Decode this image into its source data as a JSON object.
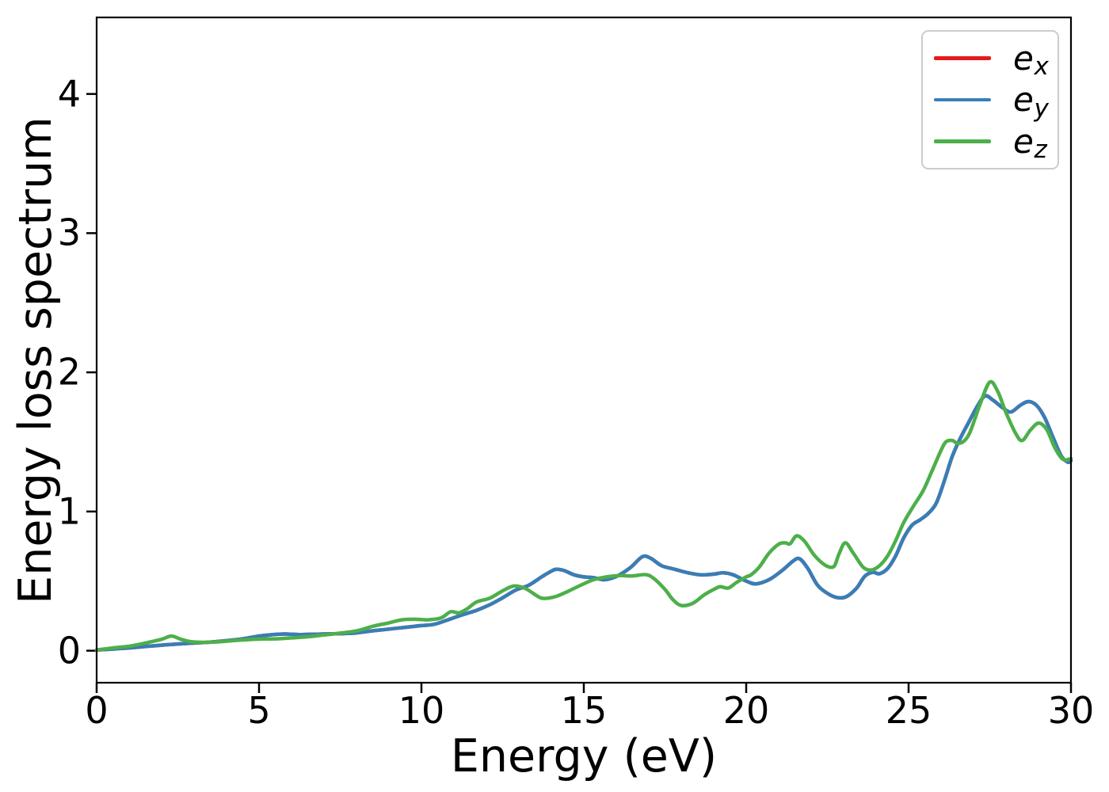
{
  "figure": {
    "xlabel": "Energy (eV)",
    "ylabel": "Energy loss spectrum",
    "x_tick_labels": [
      "0",
      "5",
      "10",
      "15",
      "20",
      "25",
      "30"
    ],
    "y_tick_labels": [
      "0",
      "1",
      "2",
      "3",
      "4"
    ]
  },
  "legend": {
    "entries": [
      {
        "base": "e",
        "sub": "x",
        "color": "#e41a1c"
      },
      {
        "base": "e",
        "sub": "y",
        "color": "#377eb8"
      },
      {
        "base": "e",
        "sub": "z",
        "color": "#4daf4a"
      }
    ]
  },
  "chart_data": {
    "type": "line",
    "title": "",
    "xlabel": "Energy (eV)",
    "ylabel": "Energy loss spectrum",
    "xlim": [
      0,
      30
    ],
    "ylim": [
      -0.23,
      4.55
    ],
    "x_ticks": [
      0,
      5,
      10,
      15,
      20,
      25,
      30
    ],
    "y_ticks": [
      0,
      1,
      2,
      3,
      4
    ],
    "grid": false,
    "legend_position": "upper right",
    "series": [
      {
        "name": "e_x",
        "color": "#e41a1c",
        "points": [
          [
            0,
            0.005
          ],
          [
            0.5,
            0.012
          ],
          [
            1,
            0.02
          ],
          [
            1.5,
            0.03
          ],
          [
            2,
            0.04
          ],
          [
            2.5,
            0.048
          ],
          [
            3,
            0.055
          ],
          [
            3.5,
            0.062
          ],
          [
            4,
            0.072
          ],
          [
            4.5,
            0.085
          ],
          [
            5,
            0.105
          ],
          [
            5.4,
            0.115
          ],
          [
            5.8,
            0.12
          ],
          [
            6.3,
            0.116
          ],
          [
            7,
            0.12
          ],
          [
            7.6,
            0.123
          ],
          [
            8,
            0.128
          ],
          [
            8.5,
            0.143
          ],
          [
            9,
            0.155
          ],
          [
            9.5,
            0.168
          ],
          [
            10,
            0.18
          ],
          [
            10.4,
            0.19
          ],
          [
            10.8,
            0.22
          ],
          [
            11.1,
            0.245
          ],
          [
            11.4,
            0.268
          ],
          [
            11.7,
            0.29
          ],
          [
            12.1,
            0.33
          ],
          [
            12.5,
            0.38
          ],
          [
            12.9,
            0.435
          ],
          [
            13.3,
            0.47
          ],
          [
            13.7,
            0.53
          ],
          [
            13.95,
            0.565
          ],
          [
            14.15,
            0.585
          ],
          [
            14.4,
            0.575
          ],
          [
            14.7,
            0.545
          ],
          [
            15,
            0.53
          ],
          [
            15.3,
            0.525
          ],
          [
            15.6,
            0.51
          ],
          [
            15.85,
            0.52
          ],
          [
            16.1,
            0.545
          ],
          [
            16.45,
            0.6
          ],
          [
            16.8,
            0.675
          ],
          [
            17.05,
            0.665
          ],
          [
            17.4,
            0.61
          ],
          [
            17.8,
            0.585
          ],
          [
            18.2,
            0.56
          ],
          [
            18.6,
            0.545
          ],
          [
            19,
            0.55
          ],
          [
            19.3,
            0.56
          ],
          [
            19.6,
            0.545
          ],
          [
            20,
            0.5
          ],
          [
            20.3,
            0.48
          ],
          [
            20.7,
            0.51
          ],
          [
            21.1,
            0.575
          ],
          [
            21.45,
            0.645
          ],
          [
            21.65,
            0.66
          ],
          [
            21.9,
            0.59
          ],
          [
            22.2,
            0.47
          ],
          [
            22.55,
            0.405
          ],
          [
            22.85,
            0.38
          ],
          [
            23.1,
            0.39
          ],
          [
            23.4,
            0.45
          ],
          [
            23.65,
            0.535
          ],
          [
            23.9,
            0.563
          ],
          [
            24.1,
            0.553
          ],
          [
            24.35,
            0.59
          ],
          [
            24.6,
            0.68
          ],
          [
            24.85,
            0.81
          ],
          [
            25.1,
            0.9
          ],
          [
            25.35,
            0.94
          ],
          [
            25.6,
            0.985
          ],
          [
            25.85,
            1.06
          ],
          [
            26.1,
            1.22
          ],
          [
            26.35,
            1.4
          ],
          [
            26.6,
            1.53
          ],
          [
            26.85,
            1.64
          ],
          [
            27.1,
            1.75
          ],
          [
            27.35,
            1.83
          ],
          [
            27.6,
            1.8
          ],
          [
            27.9,
            1.745
          ],
          [
            28.15,
            1.715
          ],
          [
            28.45,
            1.765
          ],
          [
            28.7,
            1.79
          ],
          [
            28.95,
            1.76
          ],
          [
            29.2,
            1.67
          ],
          [
            29.45,
            1.53
          ],
          [
            29.7,
            1.4
          ],
          [
            29.9,
            1.355
          ],
          [
            30,
            1.365
          ]
        ]
      },
      {
        "name": "e_y",
        "color": "#377eb8",
        "points": [
          [
            0,
            0.005
          ],
          [
            0.5,
            0.012
          ],
          [
            1,
            0.02
          ],
          [
            1.5,
            0.03
          ],
          [
            2,
            0.04
          ],
          [
            2.5,
            0.048
          ],
          [
            3,
            0.055
          ],
          [
            3.5,
            0.062
          ],
          [
            4,
            0.072
          ],
          [
            4.5,
            0.085
          ],
          [
            5,
            0.105
          ],
          [
            5.4,
            0.115
          ],
          [
            5.8,
            0.12
          ],
          [
            6.3,
            0.116
          ],
          [
            7,
            0.12
          ],
          [
            7.6,
            0.123
          ],
          [
            8,
            0.128
          ],
          [
            8.5,
            0.143
          ],
          [
            9,
            0.155
          ],
          [
            9.5,
            0.168
          ],
          [
            10,
            0.18
          ],
          [
            10.4,
            0.19
          ],
          [
            10.8,
            0.22
          ],
          [
            11.1,
            0.245
          ],
          [
            11.4,
            0.268
          ],
          [
            11.7,
            0.29
          ],
          [
            12.1,
            0.33
          ],
          [
            12.5,
            0.38
          ],
          [
            12.9,
            0.435
          ],
          [
            13.3,
            0.47
          ],
          [
            13.7,
            0.53
          ],
          [
            13.95,
            0.565
          ],
          [
            14.15,
            0.585
          ],
          [
            14.4,
            0.575
          ],
          [
            14.7,
            0.545
          ],
          [
            15,
            0.53
          ],
          [
            15.3,
            0.525
          ],
          [
            15.6,
            0.51
          ],
          [
            15.85,
            0.52
          ],
          [
            16.1,
            0.545
          ],
          [
            16.45,
            0.6
          ],
          [
            16.8,
            0.675
          ],
          [
            17.05,
            0.665
          ],
          [
            17.4,
            0.61
          ],
          [
            17.8,
            0.585
          ],
          [
            18.2,
            0.56
          ],
          [
            18.6,
            0.545
          ],
          [
            19,
            0.55
          ],
          [
            19.3,
            0.56
          ],
          [
            19.6,
            0.545
          ],
          [
            20,
            0.5
          ],
          [
            20.3,
            0.48
          ],
          [
            20.7,
            0.51
          ],
          [
            21.1,
            0.575
          ],
          [
            21.45,
            0.645
          ],
          [
            21.65,
            0.66
          ],
          [
            21.9,
            0.59
          ],
          [
            22.2,
            0.47
          ],
          [
            22.55,
            0.405
          ],
          [
            22.85,
            0.38
          ],
          [
            23.1,
            0.39
          ],
          [
            23.4,
            0.45
          ],
          [
            23.65,
            0.535
          ],
          [
            23.9,
            0.563
          ],
          [
            24.1,
            0.553
          ],
          [
            24.35,
            0.59
          ],
          [
            24.6,
            0.68
          ],
          [
            24.85,
            0.81
          ],
          [
            25.1,
            0.9
          ],
          [
            25.35,
            0.94
          ],
          [
            25.6,
            0.985
          ],
          [
            25.85,
            1.06
          ],
          [
            26.1,
            1.22
          ],
          [
            26.35,
            1.4
          ],
          [
            26.6,
            1.53
          ],
          [
            26.85,
            1.64
          ],
          [
            27.1,
            1.75
          ],
          [
            27.35,
            1.83
          ],
          [
            27.6,
            1.8
          ],
          [
            27.9,
            1.745
          ],
          [
            28.15,
            1.715
          ],
          [
            28.45,
            1.765
          ],
          [
            28.7,
            1.79
          ],
          [
            28.95,
            1.76
          ],
          [
            29.2,
            1.67
          ],
          [
            29.45,
            1.53
          ],
          [
            29.7,
            1.4
          ],
          [
            29.9,
            1.355
          ],
          [
            30,
            1.365
          ]
        ]
      },
      {
        "name": "e_z",
        "color": "#4daf4a",
        "points": [
          [
            0,
            0.005
          ],
          [
            0.5,
            0.02
          ],
          [
            1,
            0.032
          ],
          [
            1.5,
            0.055
          ],
          [
            2,
            0.082
          ],
          [
            2.3,
            0.105
          ],
          [
            2.6,
            0.082
          ],
          [
            2.9,
            0.065
          ],
          [
            3.3,
            0.06
          ],
          [
            3.7,
            0.063
          ],
          [
            4.1,
            0.07
          ],
          [
            4.4,
            0.076
          ],
          [
            4.8,
            0.081
          ],
          [
            5.2,
            0.084
          ],
          [
            5.6,
            0.086
          ],
          [
            6,
            0.092
          ],
          [
            6.5,
            0.1
          ],
          [
            7,
            0.113
          ],
          [
            7.5,
            0.126
          ],
          [
            8,
            0.142
          ],
          [
            8.5,
            0.175
          ],
          [
            9,
            0.2
          ],
          [
            9.4,
            0.222
          ],
          [
            9.8,
            0.226
          ],
          [
            10.2,
            0.222
          ],
          [
            10.6,
            0.235
          ],
          [
            10.9,
            0.28
          ],
          [
            11.15,
            0.272
          ],
          [
            11.4,
            0.3
          ],
          [
            11.7,
            0.35
          ],
          [
            12.1,
            0.377
          ],
          [
            12.5,
            0.43
          ],
          [
            12.85,
            0.465
          ],
          [
            13.2,
            0.447
          ],
          [
            13.65,
            0.382
          ],
          [
            13.9,
            0.378
          ],
          [
            14.15,
            0.39
          ],
          [
            14.5,
            0.425
          ],
          [
            14.9,
            0.47
          ],
          [
            15.3,
            0.51
          ],
          [
            15.7,
            0.53
          ],
          [
            16.1,
            0.54
          ],
          [
            16.5,
            0.537
          ],
          [
            16.9,
            0.547
          ],
          [
            17.15,
            0.52
          ],
          [
            17.5,
            0.44
          ],
          [
            17.75,
            0.365
          ],
          [
            18,
            0.325
          ],
          [
            18.35,
            0.34
          ],
          [
            18.7,
            0.4
          ],
          [
            19,
            0.44
          ],
          [
            19.2,
            0.46
          ],
          [
            19.45,
            0.45
          ],
          [
            19.7,
            0.49
          ],
          [
            20,
            0.53
          ],
          [
            20.15,
            0.545
          ],
          [
            20.4,
            0.6
          ],
          [
            20.7,
            0.7
          ],
          [
            21,
            0.765
          ],
          [
            21.2,
            0.775
          ],
          [
            21.35,
            0.768
          ],
          [
            21.55,
            0.825
          ],
          [
            21.8,
            0.785
          ],
          [
            22.1,
            0.685
          ],
          [
            22.45,
            0.612
          ],
          [
            22.7,
            0.605
          ],
          [
            22.85,
            0.69
          ],
          [
            23.05,
            0.775
          ],
          [
            23.3,
            0.7
          ],
          [
            23.6,
            0.6
          ],
          [
            23.85,
            0.58
          ],
          [
            24.1,
            0.61
          ],
          [
            24.35,
            0.68
          ],
          [
            24.6,
            0.79
          ],
          [
            24.85,
            0.92
          ],
          [
            25.1,
            1.02
          ],
          [
            25.45,
            1.15
          ],
          [
            25.7,
            1.28
          ],
          [
            26,
            1.44
          ],
          [
            26.15,
            1.5
          ],
          [
            26.35,
            1.51
          ],
          [
            26.5,
            1.49
          ],
          [
            26.7,
            1.505
          ],
          [
            26.9,
            1.575
          ],
          [
            27.2,
            1.77
          ],
          [
            27.5,
            1.93
          ],
          [
            27.75,
            1.86
          ],
          [
            28,
            1.71
          ],
          [
            28.3,
            1.56
          ],
          [
            28.5,
            1.51
          ],
          [
            28.75,
            1.585
          ],
          [
            29,
            1.635
          ],
          [
            29.25,
            1.59
          ],
          [
            29.5,
            1.46
          ],
          [
            29.75,
            1.375
          ],
          [
            30,
            1.38
          ]
        ]
      }
    ]
  }
}
